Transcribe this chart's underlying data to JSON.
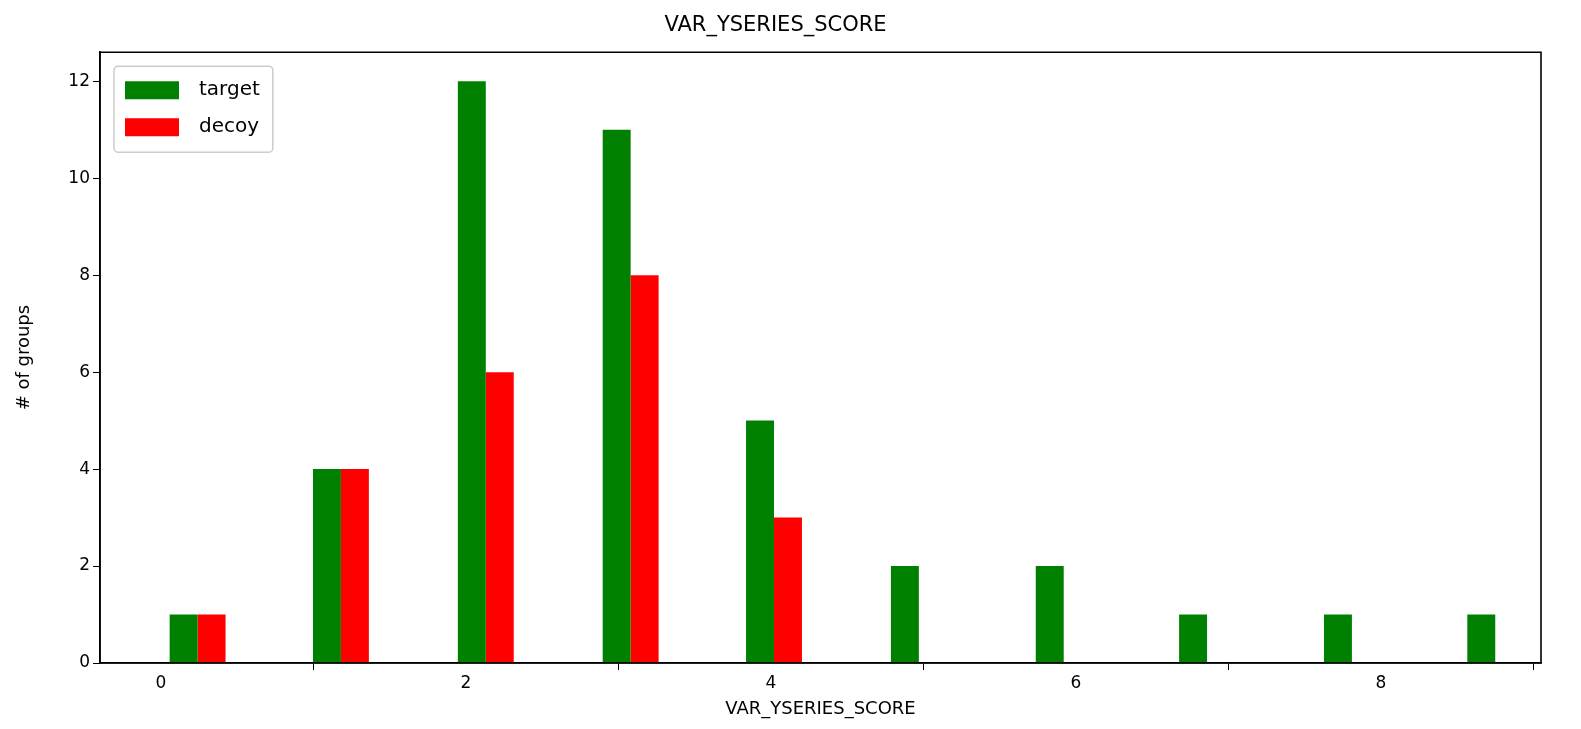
{
  "chart_data": {
    "type": "bar",
    "title": "VAR_YSERIES_SCORE",
    "xlabel": "VAR_YSERIES_SCORE",
    "ylabel": "# of groups",
    "x": [
      0.24,
      1.18,
      2.13,
      3.08,
      4.02,
      4.97,
      5.92,
      6.86,
      7.81,
      8.75
    ],
    "series": [
      {
        "name": "target",
        "color": "#008000",
        "values": [
          1,
          4,
          12,
          11,
          5,
          2,
          2,
          1,
          1,
          1
        ]
      },
      {
        "name": "decoy",
        "color": "#ff0000",
        "values": [
          1,
          4,
          6,
          8,
          3,
          0,
          0,
          0,
          0,
          0
        ]
      }
    ],
    "xlim": [
      -0.4,
      9.05
    ],
    "xticks": [
      0,
      2,
      4,
      6,
      8
    ],
    "ylim": [
      0,
      12.6
    ],
    "yticks": [
      0,
      2,
      4,
      6,
      8,
      10,
      12
    ],
    "grid": false,
    "legend": "top left"
  }
}
